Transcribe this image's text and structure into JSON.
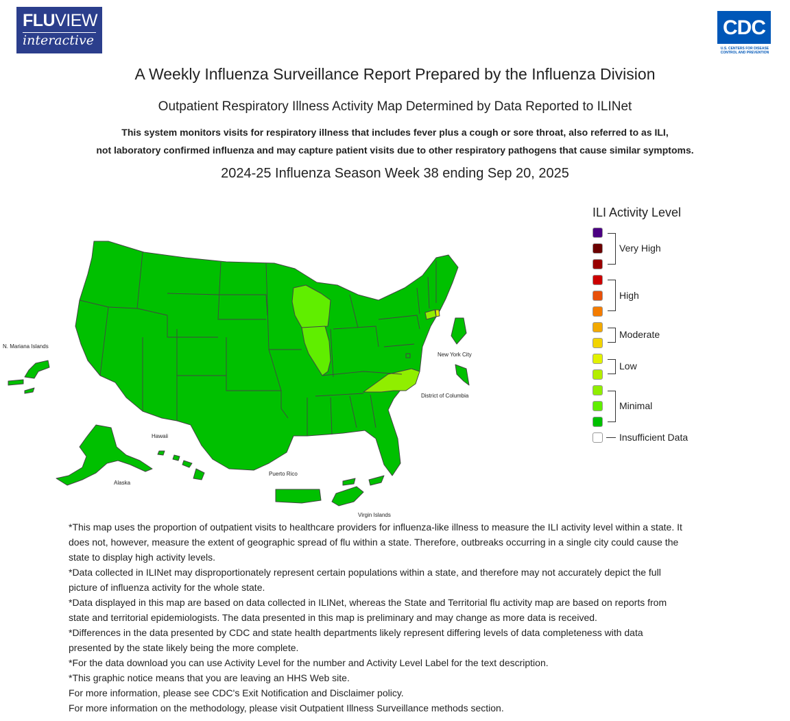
{
  "header": {
    "fluview_logo_text_bold": "FLU",
    "fluview_logo_text_thin": "VIEW",
    "fluview_logo_subtitle": "interactive",
    "cdc_logo_text": "CDC",
    "cdc_logo_tagline": "U.S. CENTERS FOR DISEASE CONTROL AND PREVENTION"
  },
  "titles": {
    "main": "A Weekly Influenza Surveillance Report Prepared by the Influenza Division",
    "sub": "Outpatient Respiratory Illness Activity Map Determined by Data Reported to ILINet",
    "desc_line1": "This system monitors visits for respiratory illness that includes fever plus a cough or sore throat, also referred to as ILI,",
    "desc_line2": "not laboratory confirmed influenza and may capture patient visits due to other respiratory pathogens that cause similar symptoms.",
    "season": "2024-25 Influenza Season Week 38 ending Sep 20, 2025"
  },
  "legend": {
    "title": "ILI Activity Level",
    "swatches": [
      "#4b0082",
      "#6b0000",
      "#990000",
      "#cc0000",
      "#e8500a",
      "#f47c00",
      "#f2a900",
      "#f2d400",
      "#e2f200",
      "#b4ee00",
      "#90ee00",
      "#60ee00",
      "#00c000",
      "#ffffff"
    ],
    "groups": [
      "Very High",
      "High",
      "Moderate",
      "Low",
      "Minimal",
      "Insufficient Data"
    ]
  },
  "map": {
    "labels": {
      "mariana": "N. Mariana Islands",
      "nyc": "New York City",
      "dc": "District of Columbia",
      "hawaii": "Hawaii",
      "alaska": "Alaska",
      "puerto_rico": "Puerto Rico",
      "virgin_islands": "Virgin Islands"
    },
    "colors": {
      "minimal_dark": "#00c000",
      "minimal_mid": "#60ee00",
      "minimal_light": "#90ee00",
      "low": "#e2f200",
      "border": "#444444"
    },
    "state_levels": {
      "Wisconsin": "minimal_mid",
      "Illinois": "minimal_mid",
      "North Carolina": "minimal_light",
      "Connecticut": "minimal_light",
      "Rhode Island": "low",
      "default": "minimal_dark"
    }
  },
  "notes": [
    "*This map uses the proportion of outpatient visits to healthcare providers for influenza-like illness to measure the ILI activity level within a state. It does not, however, measure the extent of geographic spread of flu within a state. Therefore, outbreaks occurring in a single city could cause the state to display high activity levels.",
    "*Data collected in ILINet may disproportionately represent certain populations within a state, and therefore may not accurately depict the full picture of influenza activity for the whole state.",
    "*Data displayed in this map are based on data collected in ILINet, whereas the State and Territorial flu activity map are based on reports from state and territorial epidemiologists. The data presented in this map is preliminary and may change as more data is received.",
    "*Differences in the data presented by CDC and state health departments likely represent differing levels of data completeness with data presented by the state likely being the more complete.",
    "*For the data download you can use Activity Level for the number and Activity Level Label for the text description.",
    "*This graphic notice means that you are leaving an HHS Web site.",
    "For more information, please see CDC's Exit Notification and Disclaimer policy.",
    "For more information on the methodology, please visit Outpatient Illness Surveillance methods section."
  ]
}
